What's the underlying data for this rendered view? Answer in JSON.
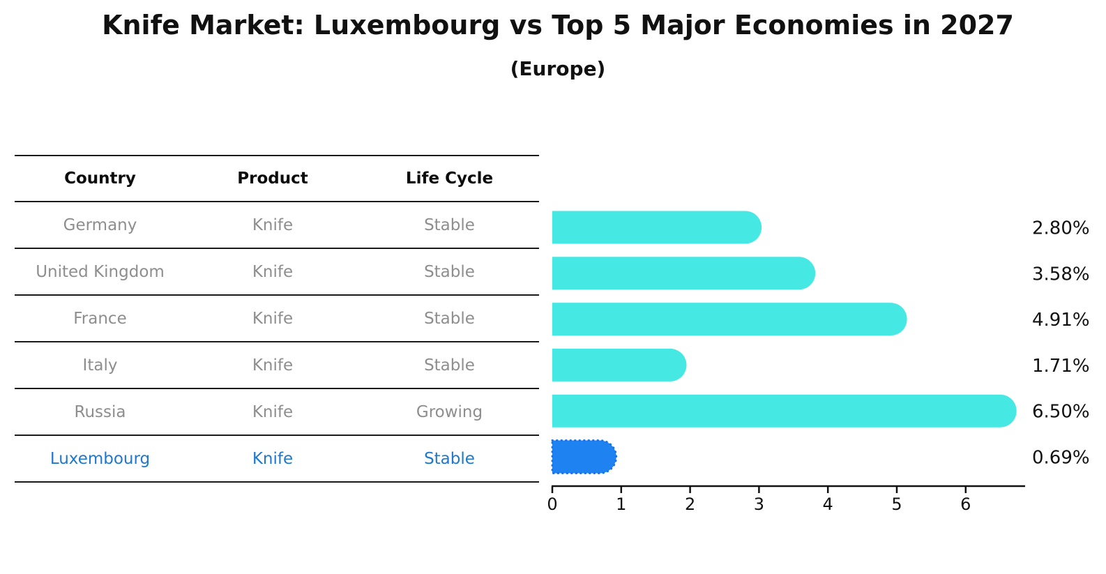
{
  "header": {
    "title": "Knife Market: Luxembourg vs Top 5 Major Economies in 2027",
    "subtitle": "(Europe)"
  },
  "table": {
    "headers": [
      "Country",
      "Product",
      "Life Cycle"
    ],
    "rows": [
      {
        "country": "Germany",
        "product": "Knife",
        "life_cycle": "Stable",
        "highlight": false
      },
      {
        "country": "United Kingdom",
        "product": "Knife",
        "life_cycle": "Stable",
        "highlight": false
      },
      {
        "country": "France",
        "product": "Knife",
        "life_cycle": "Stable",
        "highlight": false
      },
      {
        "country": "Italy",
        "product": "Knife",
        "life_cycle": "Stable",
        "highlight": false
      },
      {
        "country": "Russia",
        "product": "Knife",
        "life_cycle": "Growing",
        "highlight": false
      },
      {
        "country": "Luxembourg",
        "product": "Knife",
        "life_cycle": "Stable",
        "highlight": true
      }
    ]
  },
  "chart_data": {
    "type": "bar",
    "orientation": "horizontal",
    "title": "Knife Market: Luxembourg vs Top 5 Major Economies in 2027",
    "subtitle": "(Europe)",
    "categories": [
      "Germany",
      "United Kingdom",
      "France",
      "Italy",
      "Russia",
      "Luxembourg"
    ],
    "values": [
      2.8,
      3.58,
      4.91,
      1.71,
      6.5,
      0.69
    ],
    "value_labels": [
      "2.80%",
      "3.58%",
      "4.91%",
      "1.71%",
      "6.50%",
      "0.69%"
    ],
    "highlight_index": 5,
    "x_ticks": [
      "0",
      "1",
      "2",
      "3",
      "4",
      "5",
      "6"
    ],
    "xlim": [
      0,
      6.86
    ],
    "bar_color": "#45e8e2",
    "highlight_bar_color": "#1e82f0",
    "highlight_bar_border_color": "#1874ee",
    "axis_color": "#111111",
    "label_color": "#111111",
    "grid": false,
    "legend": false
  }
}
